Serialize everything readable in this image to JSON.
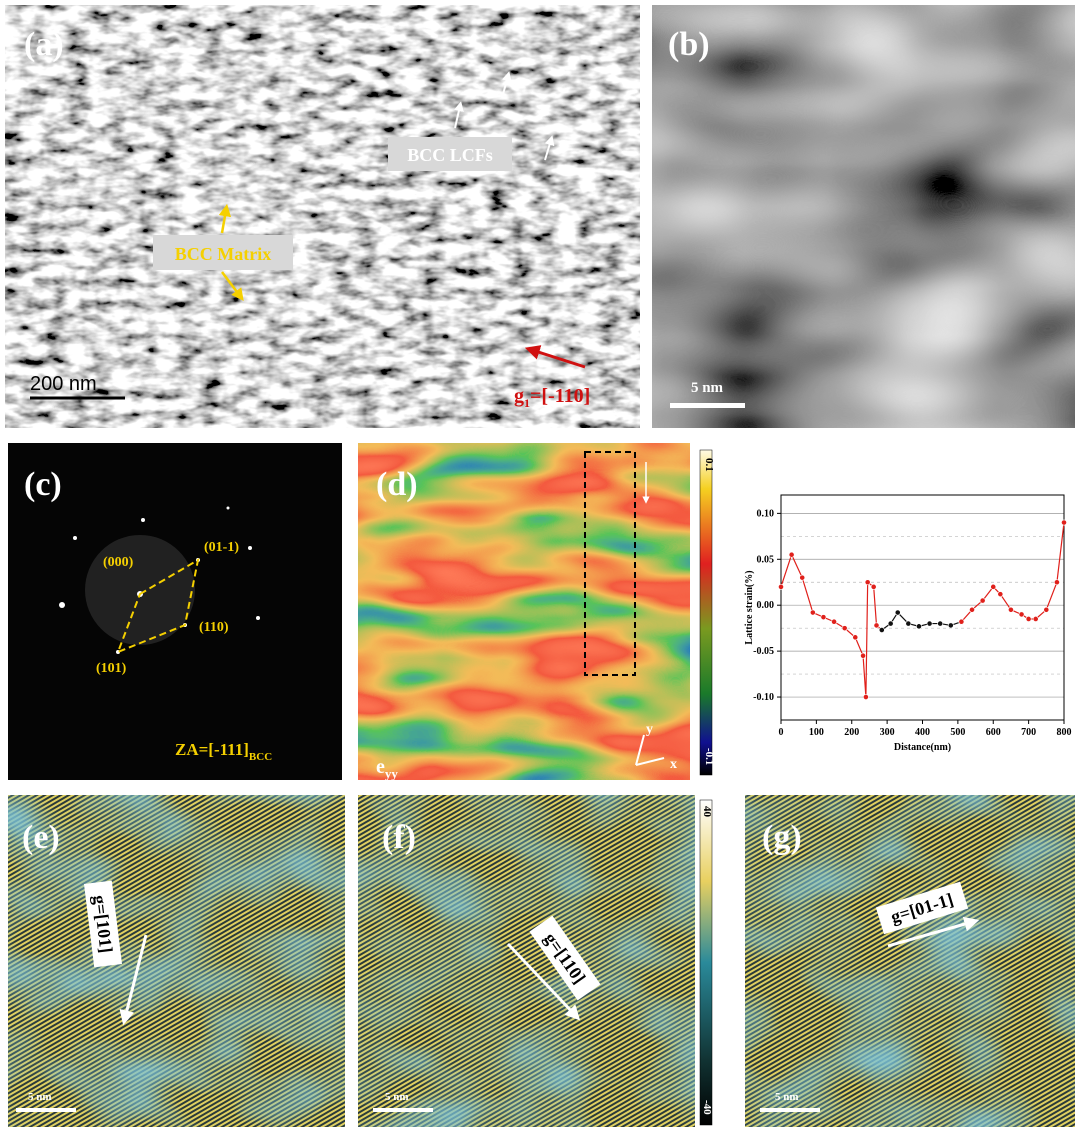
{
  "panels": {
    "a": {
      "label": "(a)",
      "lcf": "BCC LCFs",
      "matrix": "BCC Matrix",
      "scale": "200 nm",
      "g_main": "g",
      "g_sub": "1",
      "g_rest": "=[-110]"
    },
    "b": {
      "label": "(b)",
      "scale": "5 nm"
    },
    "c": {
      "label": "(c)",
      "spots": [
        "(000)",
        "(01-1)",
        "(110)",
        "(101)"
      ],
      "za": "ZA=[-111]",
      "za_sub": "BCC"
    },
    "d": {
      "label": "(d)",
      "e_main": "e",
      "e_sub": "yy",
      "axis_y": "y",
      "axis_x": "x",
      "cbar_top": "0.1",
      "cbar_bottom": "-0.1"
    },
    "e": {
      "label": "(e)",
      "g": "g=[101]",
      "scale": "5 nm"
    },
    "f": {
      "label": "(f)",
      "g": "g=[110]",
      "scale": "5 nm",
      "cbar_top": "40",
      "cbar_bottom": "-40"
    },
    "g": {
      "label": "(g)",
      "g": "g=[01-1]",
      "scale": "5 nm"
    }
  },
  "strain_chart": {
    "type": "line",
    "y_label": "Lattice strain(%)",
    "x_label": "Distance(nm)",
    "xlim": [
      0,
      800
    ],
    "ylim": [
      -0.125,
      0.12
    ],
    "xticks": [
      0,
      100,
      200,
      300,
      400,
      500,
      600,
      700,
      800
    ],
    "yticks": [
      {
        "value": -0.1,
        "label": "-0.10"
      },
      {
        "value": -0.05,
        "label": "-0.05"
      },
      {
        "value": 0,
        "label": "0.00"
      },
      {
        "value": 0.05,
        "label": "0.05"
      },
      {
        "value": 0.1,
        "label": "0.10"
      }
    ],
    "minor_yticks": [
      -0.075,
      -0.025,
      0.025,
      0.075
    ],
    "series": [
      {
        "color": "#e0201b",
        "x": [
          0,
          30,
          60,
          90,
          120,
          150,
          180,
          210,
          232,
          240,
          245,
          262,
          270,
          285
        ],
        "values": [
          0.02,
          0.055,
          0.03,
          -0.008,
          -0.013,
          -0.018,
          -0.025,
          -0.035,
          -0.055,
          -0.1,
          0.025,
          0.02,
          -0.022,
          -0.027
        ]
      },
      {
        "color": "#111111",
        "x": [
          285,
          310,
          330,
          360,
          390,
          420,
          450,
          480,
          510
        ],
        "values": [
          -0.027,
          -0.02,
          -0.008,
          -0.02,
          -0.023,
          -0.02,
          -0.02,
          -0.022,
          -0.018
        ]
      },
      {
        "color": "#e0201b",
        "x": [
          510,
          540,
          570,
          600,
          620,
          650,
          680,
          700,
          720,
          750,
          780,
          800
        ],
        "values": [
          -0.018,
          -0.005,
          0.005,
          0.02,
          0.012,
          -0.005,
          -0.01,
          -0.015,
          -0.015,
          -0.005,
          0.025,
          0.09
        ]
      }
    ]
  }
}
